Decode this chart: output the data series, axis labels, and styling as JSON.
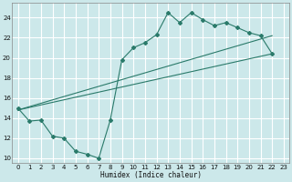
{
  "title": "",
  "xlabel": "Humidex (Indice chaleur)",
  "ylabel": "",
  "bg_color": "#cce8ea",
  "grid_color": "#ffffff",
  "line_color": "#2a7a6a",
  "xlim": [
    -0.5,
    23.5
  ],
  "ylim": [
    9.5,
    25.5
  ],
  "xticks": [
    0,
    1,
    2,
    3,
    4,
    5,
    6,
    7,
    8,
    9,
    10,
    11,
    12,
    13,
    14,
    15,
    16,
    17,
    18,
    19,
    20,
    21,
    22,
    23
  ],
  "yticks": [
    10,
    12,
    14,
    16,
    18,
    20,
    22,
    24
  ],
  "series1_x": [
    0,
    1,
    2,
    3,
    4,
    5,
    6,
    7,
    8,
    9,
    10,
    11,
    12,
    13,
    14,
    15,
    16,
    17,
    18,
    19,
    20,
    21,
    22
  ],
  "series1_y": [
    15.0,
    13.7,
    13.8,
    12.2,
    12.0,
    10.7,
    10.4,
    10.0,
    13.8,
    19.8,
    21.0,
    21.5,
    22.3,
    24.5,
    23.5,
    24.5,
    23.8,
    23.2,
    23.5,
    23.0,
    22.5,
    22.2,
    20.4
  ],
  "series2_x": [
    0,
    22
  ],
  "series2_y": [
    14.8,
    22.2
  ],
  "series3_x": [
    0,
    22
  ],
  "series3_y": [
    14.8,
    20.4
  ]
}
